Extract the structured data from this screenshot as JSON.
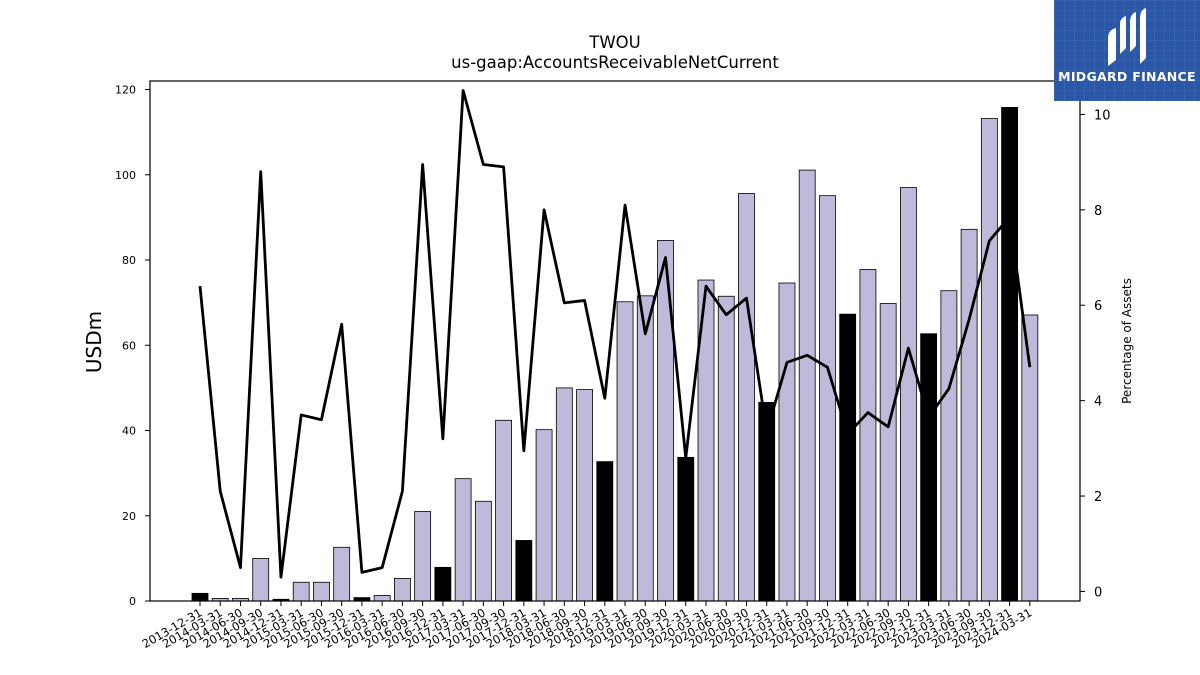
{
  "brand": {
    "name": "MIDGARD FINANCE",
    "bg_color": "#2b57a8"
  },
  "chart_data": {
    "type": "bar",
    "title": "TWOU",
    "subtitle": "us-gaap:AccountsReceivableNetCurrent",
    "ylabel": "USDm",
    "y2label": "Percentage of Assets",
    "ylim": [
      0,
      122
    ],
    "y2lim": [
      -0.2,
      10.7
    ],
    "yticks": [
      0,
      20,
      40,
      60,
      80,
      100,
      120
    ],
    "y2ticks": [
      0,
      2,
      4,
      6,
      8,
      10
    ],
    "grid": false,
    "colors": {
      "quarter_bar": "#bebad9",
      "annual_bar": "#000000",
      "line": "#000000"
    },
    "categories": [
      "2013-12-31",
      "2014-03-31",
      "2014-06-30",
      "2014-09-30",
      "2014-12-31",
      "2015-03-31",
      "2015-06-30",
      "2015-09-30",
      "2015-12-31",
      "2016-03-31",
      "2016-06-30",
      "2016-09-30",
      "2016-12-31",
      "2017-03-31",
      "2017-06-30",
      "2017-09-30",
      "2017-12-31",
      "2018-03-31",
      "2018-06-30",
      "2018-09-30",
      "2018-12-31",
      "2019-03-31",
      "2019-06-30",
      "2019-09-30",
      "2019-12-31",
      "2020-03-31",
      "2020-06-30",
      "2020-09-30",
      "2020-12-31",
      "2021-03-31",
      "2021-06-30",
      "2021-09-30",
      "2021-12-31",
      "2022-03-31",
      "2022-06-30",
      "2022-09-30",
      "2022-12-31",
      "2023-03-31",
      "2023-06-30",
      "2023-09-30",
      "2023-12-31",
      "2024-03-31"
    ],
    "series": [
      {
        "role": "bars",
        "values": [
          1.8,
          0.6,
          0.6,
          10,
          0.4,
          4.4,
          4.4,
          12.6,
          0.8,
          1.3,
          5.3,
          21,
          7.9,
          28.7,
          23.4,
          42.4,
          14.2,
          40.2,
          50,
          49.6,
          32.7,
          70.2,
          71.6,
          84.6,
          33.7,
          75.3,
          71.5,
          95.6,
          46.6,
          74.6,
          101.1,
          95.1,
          67.3,
          77.8,
          69.8,
          97,
          62.7,
          72.8,
          87.2,
          113.2,
          115.8,
          67.1
        ],
        "annual": [
          true,
          false,
          false,
          false,
          true,
          false,
          false,
          false,
          true,
          false,
          false,
          false,
          true,
          false,
          false,
          false,
          true,
          false,
          false,
          false,
          true,
          false,
          false,
          false,
          true,
          false,
          false,
          false,
          true,
          false,
          false,
          false,
          true,
          false,
          false,
          false,
          true,
          false,
          false,
          false,
          true,
          false
        ]
      },
      {
        "role": "line",
        "axis": "right",
        "values": [
          6.4,
          2.1,
          0.5,
          8.8,
          0.3,
          3.7,
          3.6,
          5.6,
          0.4,
          0.5,
          2.1,
          8.95,
          3.2,
          10.5,
          8.95,
          8.9,
          2.95,
          8.0,
          6.05,
          6.1,
          4.05,
          8.1,
          5.4,
          7.0,
          2.8,
          6.4,
          5.8,
          6.15,
          3.35,
          4.8,
          4.95,
          4.7,
          3.3,
          3.75,
          3.45,
          5.1,
          3.65,
          4.25,
          5.7,
          7.35,
          7.85,
          4.7
        ]
      }
    ]
  }
}
